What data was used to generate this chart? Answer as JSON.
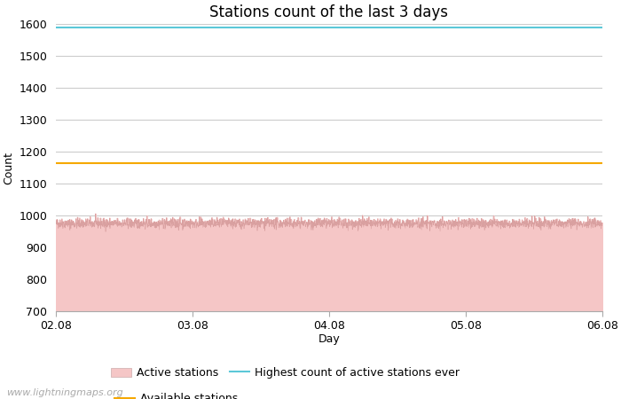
{
  "title": "Stations count of the last 3 days",
  "xlabel": "Day",
  "ylabel": "Count",
  "ylim": [
    700,
    1600
  ],
  "yticks": [
    700,
    800,
    900,
    1000,
    1100,
    1200,
    1300,
    1400,
    1500,
    1600
  ],
  "x_start": 0,
  "x_end": 96,
  "xtick_labels": [
    "02.08",
    "03.08",
    "04.08",
    "05.08",
    "06.08"
  ],
  "xtick_positions": [
    0,
    24,
    48,
    72,
    96
  ],
  "active_stations_mean": 975,
  "active_stations_noise": 8,
  "highest_count": 1590,
  "available_stations": 1163,
  "active_fill_color": "#f5c6c6",
  "active_line_color": "#d9a0a0",
  "highest_line_color": "#5bc8d8",
  "available_line_color": "#f5a800",
  "background_color": "#ffffff",
  "grid_color": "#cccccc",
  "watermark": "www.lightningmaps.org",
  "title_fontsize": 12,
  "axis_label_fontsize": 9,
  "tick_fontsize": 9,
  "watermark_fontsize": 8
}
